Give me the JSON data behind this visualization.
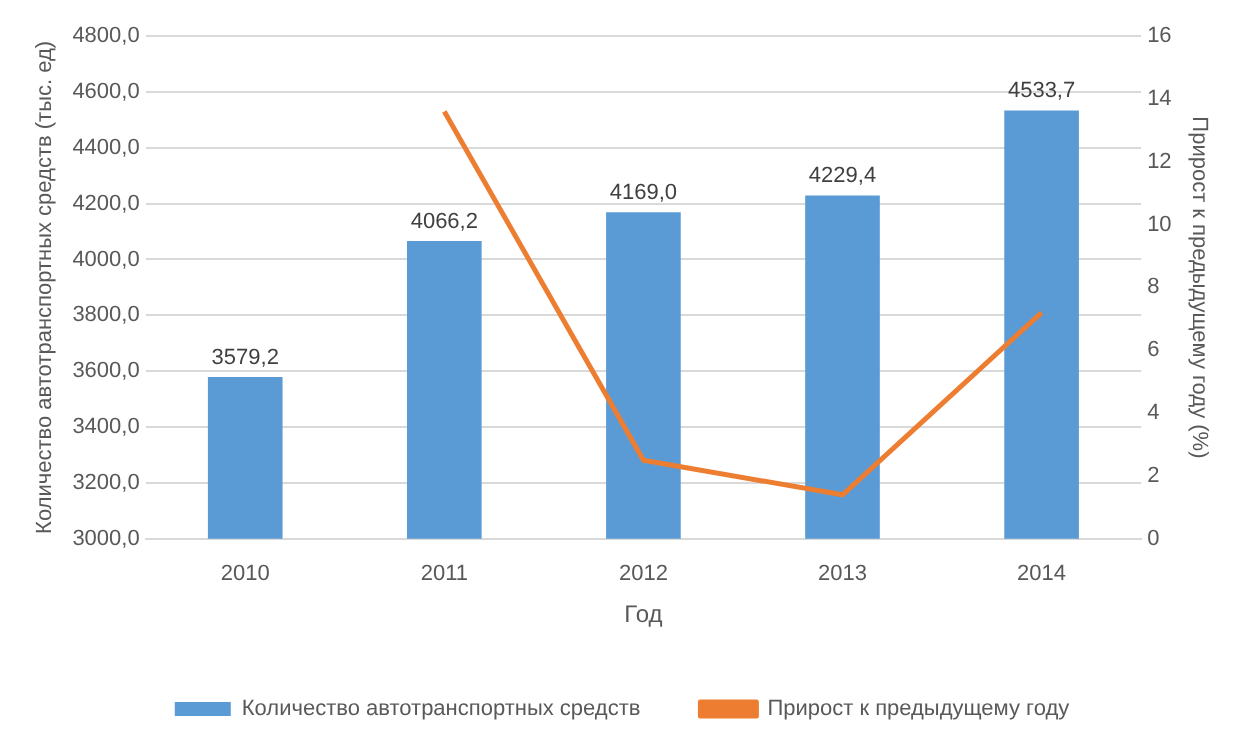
{
  "chart_data": {
    "type": "bar",
    "xlabel": "Год",
    "ylabel": "Количество автотранспортных средств (тыс. ед)",
    "y2label": "Прирост к предыдущему году (%)",
    "categories": [
      "2010",
      "2011",
      "2012",
      "2013",
      "2014"
    ],
    "series": [
      {
        "name": "Количество автотранспортных средств",
        "color": "#5b9bd5",
        "values": [
          3579.2,
          4066.2,
          4169.0,
          4229.4,
          4533.7
        ],
        "value_labels": [
          "3579,2",
          "4066,2",
          "4169,0",
          "4229,4",
          "4533,7"
        ]
      },
      {
        "name": "Прирост к предыдущему году",
        "type": "line",
        "axis": "y2",
        "color": "#ed7d31",
        "values": [
          null,
          13.6,
          2.5,
          1.4,
          7.2
        ]
      }
    ],
    "ylim": [
      3000,
      4800
    ],
    "yticks": [
      {
        "value": 3000,
        "label": "3000,0"
      },
      {
        "value": 3200,
        "label": "3200,0"
      },
      {
        "value": 3400,
        "label": "3400,0"
      },
      {
        "value": 3600,
        "label": "3600,0"
      },
      {
        "value": 3800,
        "label": "3800,0"
      },
      {
        "value": 4000,
        "label": "4000,0"
      },
      {
        "value": 4200,
        "label": "4200,0"
      },
      {
        "value": 4400,
        "label": "4400,0"
      },
      {
        "value": 4600,
        "label": "4600,0"
      },
      {
        "value": 4800,
        "label": "4800,0"
      }
    ],
    "y2lim": [
      0,
      16
    ],
    "y2ticks": [
      0,
      2,
      4,
      6,
      8,
      10,
      12,
      14,
      16
    ],
    "grid": "y",
    "legend": "bottom",
    "marker": "none",
    "line_style": "solid"
  }
}
